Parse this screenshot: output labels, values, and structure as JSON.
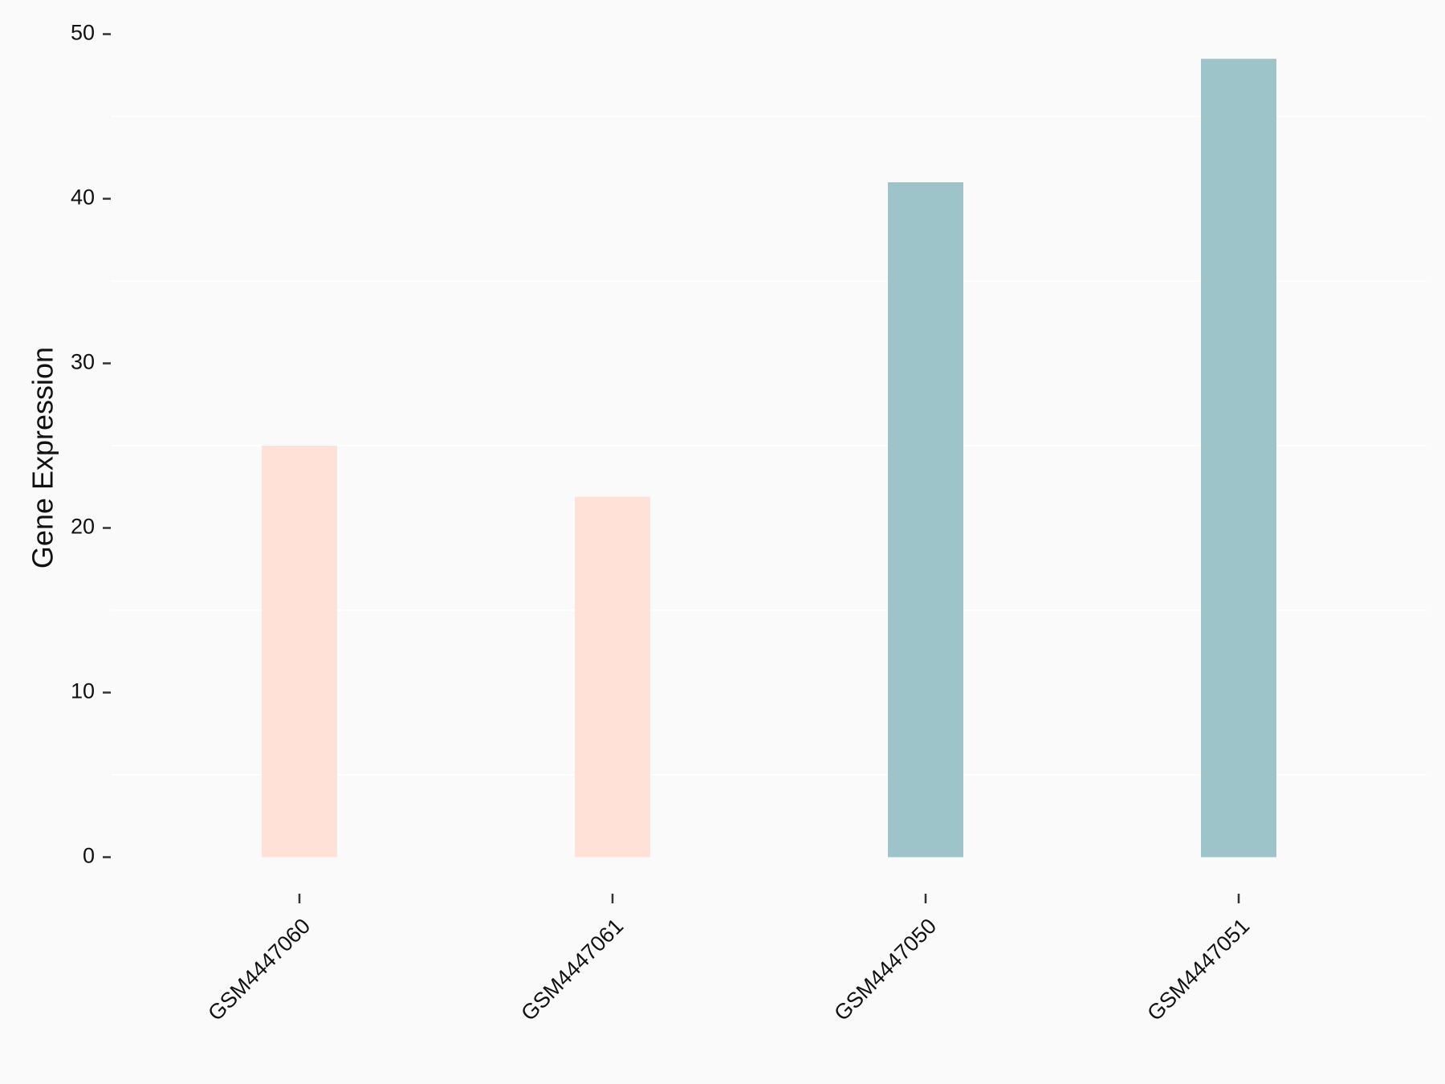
{
  "chart_data": {
    "type": "bar",
    "y_label": "Gene Expression",
    "categories": [
      "GSM4447060",
      "GSM4447061",
      "GSM4447050",
      "GSM4447051"
    ],
    "values": [
      25.0,
      21.9,
      41.0,
      48.5
    ],
    "colors": [
      "#ffe1d7",
      "#ffe1d7",
      "#9dc4c8",
      "#9dc4c8"
    ],
    "ylim": [
      0,
      50
    ],
    "yticks": [
      0,
      10,
      20,
      30,
      40,
      50
    ],
    "minor_grid": true
  }
}
